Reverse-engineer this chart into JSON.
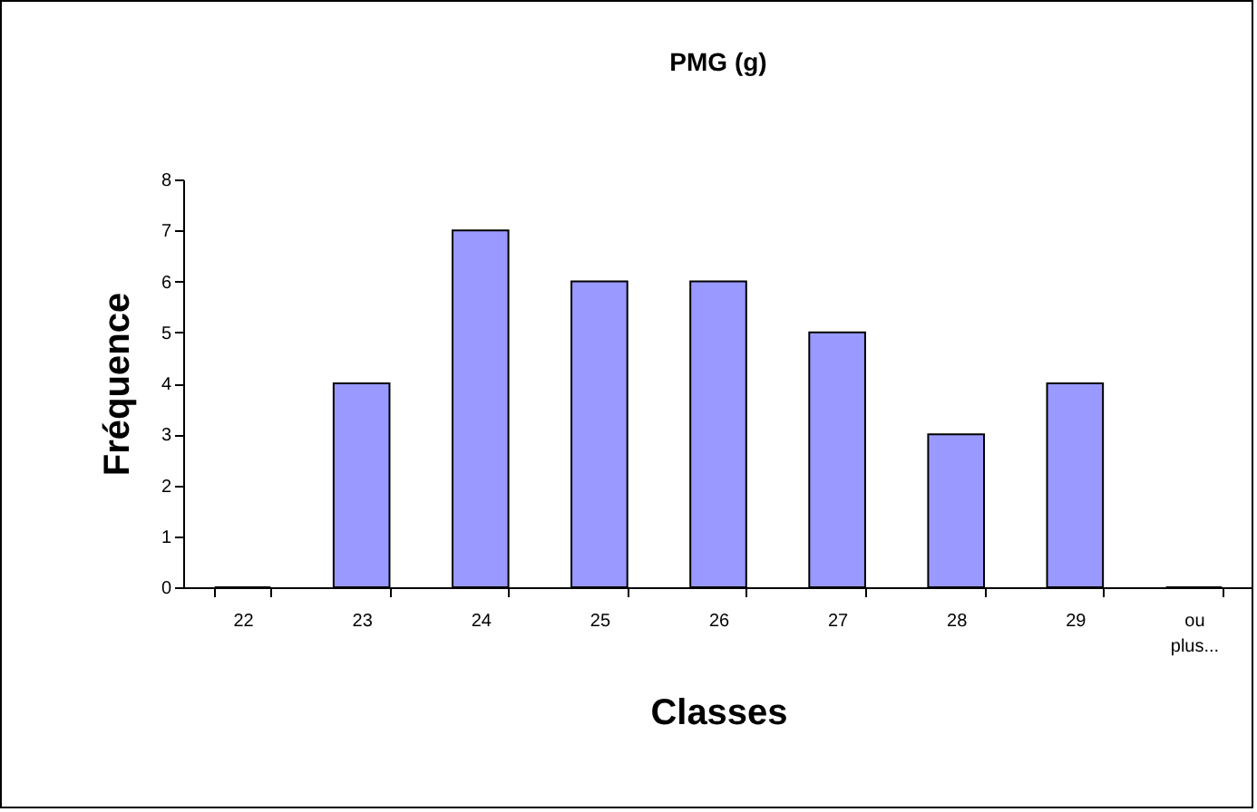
{
  "chart_data": {
    "type": "bar",
    "title": "PMG (g)",
    "xlabel": "Classes",
    "ylabel": "Fréquence",
    "categories": [
      "22",
      "23",
      "24",
      "25",
      "26",
      "27",
      "28",
      "29",
      "ou plus..."
    ],
    "values": [
      0,
      4,
      7,
      6,
      6,
      5,
      3,
      4,
      0
    ],
    "color": "#9999ff",
    "ylim": [
      0,
      8
    ],
    "yticks": [
      0,
      1,
      2,
      3,
      4,
      5,
      6,
      7,
      8
    ],
    "grid": false
  }
}
